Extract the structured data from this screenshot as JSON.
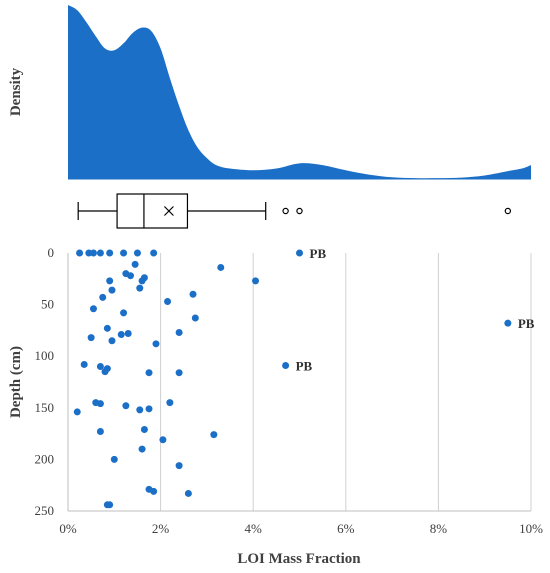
{
  "colors": {
    "accent": "#1c6fc7",
    "axis": "#404040",
    "grid": "#d0d0d0",
    "box": "#000000"
  },
  "chart_data": [
    {
      "type": "area",
      "ylabel": "Density",
      "xlim": [
        0,
        10
      ],
      "x": [
        0.0,
        0.2,
        0.4,
        0.6,
        0.8,
        1.0,
        1.2,
        1.4,
        1.6,
        1.8,
        2.0,
        2.2,
        2.4,
        2.6,
        2.8,
        3.0,
        3.2,
        3.5,
        4.0,
        4.5,
        5.0,
        5.5,
        6.0,
        6.5,
        7.0,
        7.5,
        8.0,
        8.5,
        9.0,
        9.5,
        9.8,
        10.0
      ],
      "y": [
        1.0,
        0.97,
        0.9,
        0.82,
        0.75,
        0.74,
        0.78,
        0.84,
        0.87,
        0.85,
        0.75,
        0.58,
        0.42,
        0.28,
        0.18,
        0.12,
        0.08,
        0.06,
        0.05,
        0.06,
        0.09,
        0.08,
        0.05,
        0.025,
        0.01,
        0.005,
        0.005,
        0.008,
        0.02,
        0.045,
        0.06,
        0.08
      ]
    },
    {
      "type": "box",
      "min": 0.22,
      "q1": 1.06,
      "median": 1.64,
      "mean": 2.18,
      "q3": 2.58,
      "whisker_max": 4.27,
      "outliers": [
        4.7,
        5.0,
        9.5
      ]
    },
    {
      "type": "scatter",
      "xlabel": "LOI Mass Fraction",
      "ylabel": "Depth (cm)",
      "xlim": [
        0,
        10
      ],
      "ylim": [
        0,
        250
      ],
      "x_ticks": [
        "0%",
        "2%",
        "4%",
        "6%",
        "8%",
        "10%"
      ],
      "y_ticks": [
        "0",
        "50",
        "100",
        "150",
        "200",
        "250"
      ],
      "points": [
        [
          0.25,
          0
        ],
        [
          0.45,
          0
        ],
        [
          0.55,
          0
        ],
        [
          0.7,
          0
        ],
        [
          0.9,
          0
        ],
        [
          1.2,
          0
        ],
        [
          1.5,
          0
        ],
        [
          1.85,
          0
        ],
        [
          5.0,
          0
        ],
        [
          1.45,
          11
        ],
        [
          3.3,
          14
        ],
        [
          1.25,
          20
        ],
        [
          1.35,
          22
        ],
        [
          1.65,
          24
        ],
        [
          1.6,
          27
        ],
        [
          0.9,
          27
        ],
        [
          4.05,
          27
        ],
        [
          1.55,
          34
        ],
        [
          0.95,
          36
        ],
        [
          2.7,
          40
        ],
        [
          0.75,
          43
        ],
        [
          2.15,
          47
        ],
        [
          0.55,
          54
        ],
        [
          1.2,
          58
        ],
        [
          2.75,
          63
        ],
        [
          9.5,
          68
        ],
        [
          0.85,
          73
        ],
        [
          1.3,
          78
        ],
        [
          1.15,
          79
        ],
        [
          2.4,
          77
        ],
        [
          0.5,
          82
        ],
        [
          0.95,
          85
        ],
        [
          1.9,
          88
        ],
        [
          0.35,
          108
        ],
        [
          0.7,
          110
        ],
        [
          4.7,
          109
        ],
        [
          0.85,
          112
        ],
        [
          0.8,
          115
        ],
        [
          1.75,
          116
        ],
        [
          2.4,
          116
        ],
        [
          0.6,
          145
        ],
        [
          0.7,
          146
        ],
        [
          2.2,
          145
        ],
        [
          1.25,
          148
        ],
        [
          1.55,
          152
        ],
        [
          1.75,
          151
        ],
        [
          0.2,
          154
        ],
        [
          1.65,
          171
        ],
        [
          0.7,
          173
        ],
        [
          3.15,
          176
        ],
        [
          2.05,
          181
        ],
        [
          1.6,
          190
        ],
        [
          1.0,
          200
        ],
        [
          2.4,
          206
        ],
        [
          1.75,
          229
        ],
        [
          1.85,
          231
        ],
        [
          2.6,
          233
        ],
        [
          0.85,
          244
        ],
        [
          0.9,
          244
        ]
      ],
      "annotations": [
        {
          "text": "PB",
          "x": 5.0,
          "y": 0
        },
        {
          "text": "PB",
          "x": 9.5,
          "y": 68
        },
        {
          "text": "PB",
          "x": 4.7,
          "y": 109
        }
      ]
    }
  ]
}
